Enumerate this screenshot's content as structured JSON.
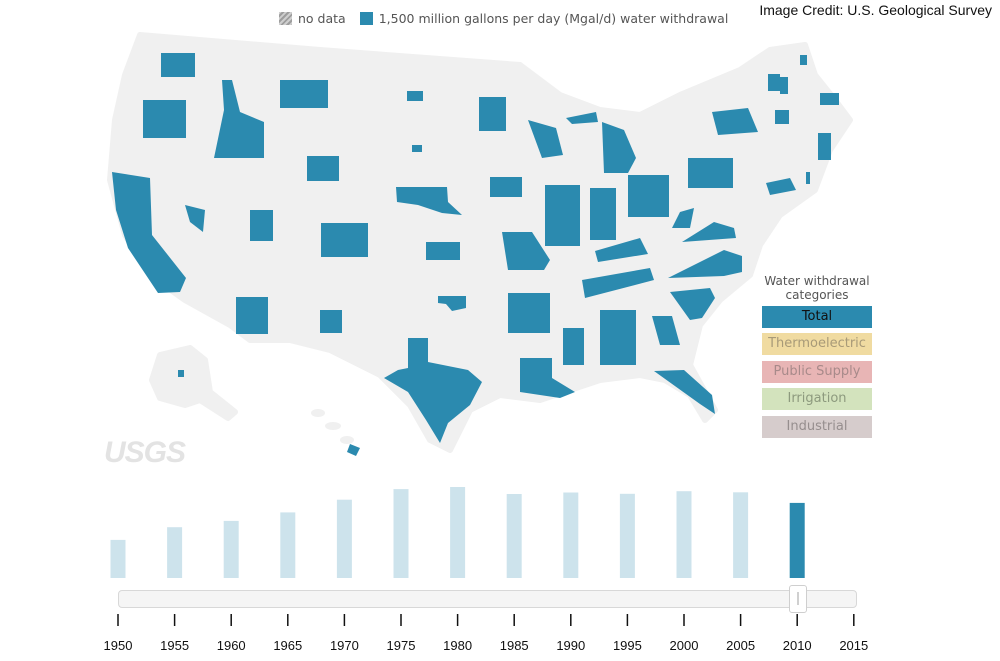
{
  "header": {
    "credit": "Image Credit: U.S. Geological Survey",
    "legend_nodata": "no data",
    "legend_value": "1,500 million gallons per day (Mgal/d) water withdrawal"
  },
  "logo_text": "USGS",
  "colors": {
    "accent": "#2b8aaf",
    "land": "#f0f0f0",
    "bar_inactive": "#cde3ec",
    "bar_active": "#2b8aaf"
  },
  "categories": {
    "title": "Water withdrawal categories",
    "items": [
      {
        "label": "Total",
        "bg": "#2b8aaf",
        "fg": "#111111",
        "active": true
      },
      {
        "label": "Thermoelectric",
        "bg": "#f0dba1",
        "fg": "#a89a78",
        "active": false
      },
      {
        "label": "Public Supply",
        "bg": "#e8b5b5",
        "fg": "#a88a8a",
        "active": false
      },
      {
        "label": "Irrigation",
        "bg": "#d3e3bd",
        "fg": "#8d9a7e",
        "active": false
      },
      {
        "label": "Industrial",
        "bg": "#d6cccc",
        "fg": "#968e8e",
        "active": false
      }
    ]
  },
  "chart_data": {
    "type": "bar",
    "categories": [
      "1950",
      "1955",
      "1960",
      "1965",
      "1970",
      "1975",
      "1980",
      "1985",
      "1990",
      "1995",
      "2000",
      "2005",
      "2010"
    ],
    "values": [
      180,
      240,
      270,
      310,
      370,
      420,
      430,
      397,
      404,
      398,
      410,
      405,
      355
    ],
    "selected": "2010",
    "axis_ticks": [
      "1950",
      "1955",
      "1960",
      "1965",
      "1970",
      "1975",
      "1980",
      "1985",
      "1990",
      "1995",
      "2000",
      "2005",
      "2010",
      "2015"
    ],
    "ylim": [
      0,
      430
    ]
  }
}
